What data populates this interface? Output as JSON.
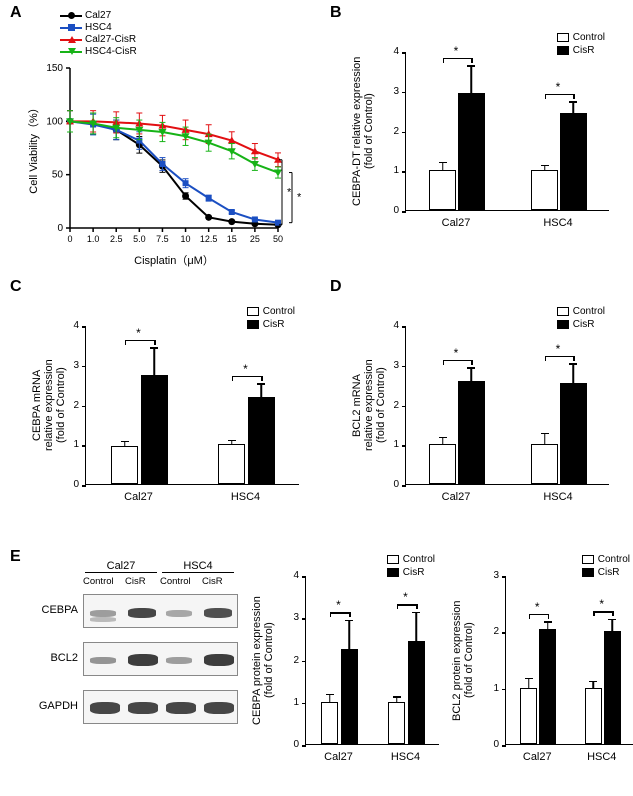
{
  "panels": {
    "A": {
      "label": "A",
      "legend": [
        {
          "label": "Cal27",
          "color": "#000000",
          "shape": "circle"
        },
        {
          "label": "HSC4",
          "color": "#1b4fc2",
          "shape": "square"
        },
        {
          "label": "Cal27-CisR",
          "color": "#e20f12",
          "shape": "tri-up"
        },
        {
          "label": "HSC4-CisR",
          "color": "#17b317",
          "shape": "tri-down"
        }
      ],
      "ylabel": "Cell Viability（%）",
      "xlabel": "Cisplatin（μM）",
      "ylim": [
        0,
        150
      ],
      "ytick_step": 50,
      "xcats": [
        "0",
        "1.0",
        "2.5",
        "5.0",
        "7.5",
        "10",
        "12.5",
        "15",
        "25",
        "50"
      ],
      "series": {
        "Cal27": {
          "color": "#000000",
          "shape": "circle",
          "y": [
            100,
            98,
            92,
            78,
            58,
            30,
            10,
            6,
            4,
            3
          ]
        },
        "HSC4": {
          "color": "#1b4fc2",
          "shape": "square",
          "y": [
            100,
            97,
            92,
            82,
            60,
            42,
            28,
            15,
            8,
            5
          ]
        },
        "Cal27-CisR": {
          "color": "#e20f12",
          "shape": "tri-up",
          "y": [
            100,
            100,
            99,
            98,
            96,
            92,
            88,
            82,
            72,
            64
          ]
        },
        "HSC4-CisR": {
          "color": "#17b317",
          "shape": "tri-down",
          "y": [
            100,
            98,
            94,
            92,
            90,
            86,
            80,
            72,
            60,
            52
          ]
        }
      },
      "sig_right": [
        {
          "pair": [
            "Cal27",
            "Cal27-CisR"
          ]
        },
        {
          "pair": [
            "HSC4",
            "HSC4-CisR"
          ]
        }
      ]
    },
    "B": {
      "label": "B",
      "ytitle": "CEBPA-DT relative expression\n(fold of Control)",
      "ylim": [
        0,
        4
      ],
      "ytick_step": 1,
      "groups": [
        "Cal27",
        "HSC4"
      ],
      "bars": {
        "Control": [
          1.0,
          1.0
        ],
        "CisR": [
          2.95,
          2.45
        ]
      },
      "err": {
        "Control": [
          0.18,
          0.1
        ],
        "CisR": [
          0.65,
          0.25
        ]
      },
      "legend": [
        "Control",
        "CisR"
      ]
    },
    "C": {
      "label": "C",
      "ytitle": "CEBPA mRNA\nrelative expression\n(fold of Control)",
      "ylim": [
        0,
        4
      ],
      "ytick_step": 1,
      "groups": [
        "Cal27",
        "HSC4"
      ],
      "bars": {
        "Control": [
          0.95,
          1.0
        ],
        "CisR": [
          2.75,
          2.2
        ]
      },
      "err": {
        "Control": [
          0.1,
          0.08
        ],
        "CisR": [
          0.65,
          0.3
        ]
      },
      "legend": [
        "Control",
        "CisR"
      ]
    },
    "D": {
      "label": "D",
      "ytitle": "BCL2 mRNA\nrelative expression\n(fold of Control)",
      "ylim": [
        0,
        4
      ],
      "ytick_step": 1,
      "groups": [
        "Cal27",
        "HSC4"
      ],
      "bars": {
        "Control": [
          1.0,
          1.0
        ],
        "CisR": [
          2.6,
          2.55
        ]
      },
      "err": {
        "Control": [
          0.15,
          0.25
        ],
        "CisR": [
          0.3,
          0.45
        ]
      },
      "legend": [
        "Control",
        "CisR"
      ]
    },
    "E": {
      "label": "E",
      "blot": {
        "cell_headers": [
          "Cal27",
          "HSC4"
        ],
        "lane_headers": [
          "Control",
          "CisR",
          "Control",
          "CisR"
        ],
        "rows": [
          "CEBPA",
          "BCL2",
          "GAPDH"
        ]
      },
      "cebpa_chart": {
        "ytitle": "CEBPA protein expression\n(fold of Control)",
        "ylim": [
          0,
          4
        ],
        "ytick_step": 1,
        "groups": [
          "Cal27",
          "HSC4"
        ],
        "bars": {
          "Control": [
            1.0,
            1.0
          ],
          "CisR": [
            2.25,
            2.45
          ]
        },
        "err": {
          "Control": [
            0.15,
            0.1
          ],
          "CisR": [
            0.65,
            0.65
          ]
        },
        "legend": [
          "Control",
          "CisR"
        ]
      },
      "bcl2_chart": {
        "ytitle": "BCL2 protein expression\n(fold of Control)",
        "ylim": [
          0,
          3
        ],
        "ytick_step": 1,
        "groups": [
          "Cal27",
          "HSC4"
        ],
        "bars": {
          "Control": [
            1.0,
            1.0
          ],
          "CisR": [
            2.05,
            2.0
          ]
        },
        "err": {
          "Control": [
            0.15,
            0.1
          ],
          "CisR": [
            0.1,
            0.2
          ]
        },
        "legend": [
          "Control",
          "CisR"
        ]
      }
    }
  },
  "colors": {
    "open": "#ffffff",
    "filled": "#000000",
    "axis": "#000000"
  }
}
